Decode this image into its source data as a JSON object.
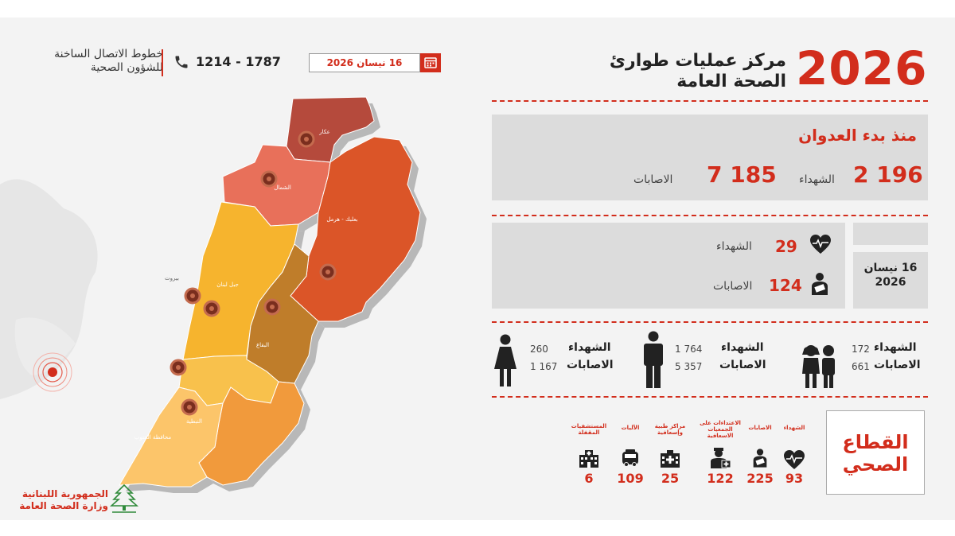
{
  "hotline": {
    "label_line1": "خطوط الاتصال الساخنة",
    "label_line2": "للشؤون الصحية",
    "number": "1214 - 1787"
  },
  "date_badge": "16 نيسان 2026",
  "header": {
    "year": "2026",
    "title_line1": "مركز عمليات طوارئ",
    "title_line2": "الصحة العامة"
  },
  "since_aggression": {
    "heading": "منذ بدء العدوان",
    "martyrs_value": "2 196",
    "martyrs_label": "الشهداء",
    "injured_value": "7 185",
    "injured_label": "الاصابات"
  },
  "daily": {
    "date_line1": "16 نيسان",
    "date_line2": "2026",
    "martyrs_value": "29",
    "martyrs_label": "الشهداء",
    "injured_value": "124",
    "injured_label": "الاصابات"
  },
  "demographics": [
    {
      "group": "children",
      "icon": "children-icon",
      "martyrs": "172",
      "injured": "661",
      "martyrs_label": "الشهداء",
      "injured_label": "الاصابات"
    },
    {
      "group": "men",
      "icon": "man-icon",
      "martyrs": "1 764",
      "injured": "5 357",
      "martyrs_label": "الشهداء",
      "injured_label": "الاصابات"
    },
    {
      "group": "women",
      "icon": "woman-icon",
      "martyrs": "260",
      "injured": "1 167",
      "martyrs_label": "الشهداء",
      "injured_label": "الاصابات"
    }
  ],
  "health_sector": {
    "title_line1": "القطاع",
    "title_line2": "الصحي",
    "items": [
      {
        "label": "الشهداء",
        "value": "93",
        "icon": "heartbeat-icon"
      },
      {
        "label": "الاصابات",
        "value": "225",
        "icon": "injured-person-icon"
      },
      {
        "label": "الاعتداءات على الجمعيات الاسعافية",
        "value": "122",
        "icon": "paramedic-icon"
      },
      {
        "label": "مراكز طبية وإسعافية",
        "value": "25",
        "icon": "medical-center-icon"
      },
      {
        "label": "الآليات",
        "value": "109",
        "icon": "ambulance-icon"
      },
      {
        "label": "المستشفيات المقفلة",
        "value": "6",
        "icon": "hospital-icon"
      }
    ]
  },
  "map": {
    "regions": [
      {
        "id": "akkar",
        "name": "عكار",
        "color": "#b54a3c"
      },
      {
        "id": "north",
        "name": "الشمال",
        "color": "#e8705a"
      },
      {
        "id": "baalbek",
        "name": "بعلبك - هرمل",
        "color": "#db5528"
      },
      {
        "id": "mount-lebanon",
        "name": "جبل لبنان",
        "color": "#f6b42e"
      },
      {
        "id": "beirut",
        "name": "بيروت",
        "color": "#9a9a9a"
      },
      {
        "id": "bekaa",
        "name": "البقاع",
        "color": "#bf7d2a"
      },
      {
        "id": "nabatieh",
        "name": "النبطية",
        "color": "#f19a3c"
      },
      {
        "id": "south",
        "name": "محافظة الجنوب",
        "color": "#fcc56a"
      }
    ]
  },
  "ministry": {
    "line1": "الجمهورية اللبنانية",
    "line2": "وزارة الصحة العامة"
  },
  "colors": {
    "accent": "#d22d1c",
    "panel": "#dcdcdc",
    "background": "#f3f3f3"
  }
}
